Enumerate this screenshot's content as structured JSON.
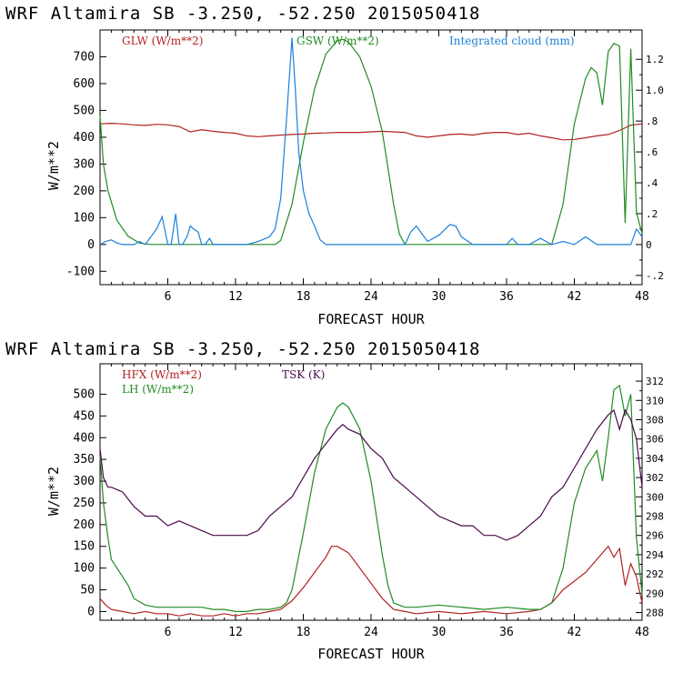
{
  "chart_data": [
    {
      "type": "line",
      "title": "WRF  Altamira  SB  -3.250, -52.250  2015050418",
      "xlabel": "FORECAST HOUR",
      "ylabel": "W/m**2",
      "xlim": [
        0,
        48
      ],
      "ylim": [
        -150,
        800
      ],
      "y2lim": [
        -0.26,
        1.39
      ],
      "xticks": [
        6,
        12,
        18,
        24,
        30,
        36,
        42,
        48
      ],
      "yticks": [
        -100,
        0,
        100,
        200,
        300,
        400,
        500,
        600,
        700
      ],
      "y2ticks": [
        -0.2,
        0,
        0.2,
        0.4,
        0.6,
        0.8,
        1.0,
        1.2
      ],
      "y2ticklabels": [
        "-.2",
        "0",
        ".2",
        ".4",
        ".6",
        ".8",
        "1.0",
        "1.2"
      ],
      "series": [
        {
          "name": "GLW (W/m**2)",
          "color": "#b22222",
          "axis": "left",
          "x": [
            0,
            1,
            2,
            3,
            4,
            5,
            6,
            7,
            8,
            9,
            10,
            11,
            12,
            13,
            14,
            15,
            16,
            17,
            18,
            19,
            20,
            21,
            22,
            23,
            24,
            25,
            26,
            27,
            28,
            29,
            30,
            31,
            32,
            33,
            34,
            35,
            36,
            37,
            38,
            39,
            40,
            41,
            42,
            43,
            44,
            45,
            46,
            47,
            48
          ],
          "y": [
            450,
            452,
            450,
            446,
            444,
            448,
            446,
            440,
            420,
            428,
            422,
            418,
            415,
            405,
            402,
            405,
            408,
            410,
            412,
            415,
            416,
            418,
            418,
            418,
            420,
            422,
            420,
            418,
            405,
            400,
            405,
            410,
            412,
            408,
            415,
            418,
            418,
            410,
            415,
            405,
            398,
            390,
            392,
            398,
            405,
            410,
            425,
            445,
            450
          ]
        },
        {
          "name": "GSW (W/m**2)",
          "color": "#228b22",
          "axis": "left",
          "x": [
            0,
            0.3,
            0.7,
            1.5,
            2.5,
            3.5,
            4.5,
            5.5,
            6.5,
            7.5,
            8.5,
            9.5,
            10.5,
            11.5,
            12.5,
            13.5,
            14.5,
            15.5,
            16,
            17,
            18,
            19,
            20,
            21,
            21.5,
            22,
            23,
            24,
            25,
            26,
            26.5,
            27,
            28,
            40,
            41,
            42,
            43,
            43.5,
            44,
            44.5,
            45,
            45.5,
            46,
            46.5,
            47,
            47.5,
            48
          ],
          "y": [
            480,
            300,
            200,
            90,
            30,
            5,
            0,
            0,
            0,
            0,
            0,
            0,
            0,
            0,
            0,
            0,
            0,
            0,
            15,
            150,
            380,
            580,
            710,
            760,
            765,
            755,
            700,
            590,
            420,
            150,
            40,
            0,
            0,
            0,
            150,
            450,
            620,
            660,
            640,
            520,
            720,
            750,
            740,
            80,
            730,
            120,
            40
          ]
        },
        {
          "name": "Integrated cloud (mm)",
          "color": "#1e7fd8",
          "axis": "right",
          "x": [
            0,
            0.5,
            1,
            1.5,
            2,
            3,
            3.5,
            4,
            4.5,
            5,
            5.5,
            6,
            6.3,
            6.7,
            7,
            7.3,
            7.7,
            8,
            8.3,
            8.7,
            9,
            9.3,
            9.7,
            10,
            11,
            12,
            13,
            14,
            15,
            15.5,
            16,
            16.5,
            17,
            17.3,
            17.6,
            18,
            18.5,
            19,
            19.5,
            20,
            21,
            22,
            23,
            24,
            25,
            26,
            27,
            27.5,
            28,
            29,
            30,
            31,
            31.5,
            32,
            33,
            34,
            35,
            36,
            36.5,
            37,
            38,
            39,
            40,
            41,
            42,
            43,
            44,
            45,
            46,
            47,
            47.5,
            48
          ],
          "y": [
            0,
            0.02,
            0.03,
            0.01,
            0,
            0,
            0.02,
            0,
            0.05,
            0.1,
            0.18,
            0,
            0,
            0.2,
            0,
            0,
            0.05,
            0.12,
            0.1,
            0.08,
            0,
            0,
            0.04,
            0,
            0,
            0,
            0,
            0.02,
            0.05,
            0.1,
            0.3,
            0.8,
            1.34,
            1.0,
            0.6,
            0.35,
            0.2,
            0.12,
            0.03,
            0,
            0,
            0,
            0,
            0,
            0,
            0,
            0,
            0.08,
            0.12,
            0.02,
            0.06,
            0.13,
            0.12,
            0.05,
            0,
            0,
            0,
            0,
            0.04,
            0,
            0,
            0.04,
            0,
            0.02,
            0,
            0.05,
            0,
            0,
            0,
            0,
            0.1,
            0.05
          ]
        }
      ],
      "legend": [
        {
          "label": "GLW (W/m**2)",
          "color": "#b22222"
        },
        {
          "label": "GSW (W/m**2)",
          "color": "#228b22"
        },
        {
          "label": "Integrated cloud (mm)",
          "color": "#1e7fd8"
        }
      ]
    },
    {
      "type": "line",
      "title": "WRF  Altamira  SB  -3.250, -52.250  2015050418",
      "xlabel": "FORECAST HOUR",
      "ylabel": "W/m**2",
      "xlim": [
        0,
        48
      ],
      "ylim": [
        -20,
        570
      ],
      "y2lim": [
        287.2,
        313.8
      ],
      "xticks": [
        6,
        12,
        18,
        24,
        30,
        36,
        42,
        48
      ],
      "yticks": [
        0,
        50,
        100,
        150,
        200,
        250,
        300,
        350,
        400,
        450,
        500
      ],
      "y2ticks": [
        288,
        290,
        292,
        294,
        296,
        298,
        300,
        302,
        304,
        306,
        308,
        310,
        312
      ],
      "y2ticklabels": [
        "288",
        "290",
        "292",
        "294",
        "296",
        "298",
        "300",
        "302",
        "304",
        "306",
        "308",
        "310",
        "312"
      ],
      "series": [
        {
          "name": "HFX (W/m**2)",
          "color": "#b22222",
          "axis": "left",
          "x": [
            0,
            0.5,
            1,
            2,
            3,
            4,
            5,
            6,
            7,
            8,
            9,
            10,
            11,
            12,
            13,
            14,
            15,
            16,
            17,
            18,
            19,
            20,
            20.5,
            21,
            22,
            23,
            24,
            25,
            26,
            27,
            28,
            30,
            32,
            34,
            36,
            38,
            39,
            40,
            41,
            42,
            43,
            44,
            45,
            45.5,
            46,
            46.5,
            47,
            47.5,
            48
          ],
          "y": [
            30,
            15,
            5,
            0,
            -5,
            0,
            -5,
            -5,
            -10,
            -5,
            -10,
            -10,
            -5,
            -10,
            -5,
            -5,
            0,
            5,
            25,
            55,
            90,
            125,
            150,
            150,
            135,
            100,
            65,
            30,
            5,
            0,
            -5,
            0,
            -5,
            0,
            -5,
            0,
            5,
            20,
            50,
            70,
            90,
            120,
            150,
            125,
            145,
            60,
            110,
            80,
            20
          ]
        },
        {
          "name": "LH (W/m**2)",
          "color": "#228b22",
          "axis": "left",
          "x": [
            0,
            0.3,
            0.7,
            1,
            1.5,
            2,
            2.5,
            3,
            4,
            5,
            6,
            7,
            8,
            9,
            10,
            11,
            12,
            13,
            14,
            15,
            16,
            16.5,
            17,
            18,
            19,
            20,
            21,
            21.5,
            22,
            23,
            24,
            25,
            25.5,
            26,
            27,
            28,
            30,
            32,
            34,
            36,
            38,
            39,
            40,
            41,
            42,
            43,
            43.5,
            44,
            44.5,
            45,
            45.5,
            46,
            46.5,
            47,
            47.5,
            48
          ],
          "y": [
            360,
            250,
            170,
            120,
            100,
            80,
            60,
            30,
            15,
            10,
            10,
            10,
            10,
            10,
            5,
            5,
            0,
            0,
            5,
            5,
            10,
            20,
            50,
            180,
            320,
            420,
            470,
            480,
            470,
            420,
            300,
            130,
            60,
            20,
            10,
            10,
            15,
            10,
            5,
            10,
            5,
            5,
            20,
            100,
            250,
            330,
            350,
            370,
            300,
            400,
            510,
            520,
            450,
            500,
            170,
            40
          ]
        },
        {
          "name": "TSK (K)",
          "color": "#4b0a4b",
          "axis": "right",
          "x": [
            0,
            0.3,
            0.7,
            1,
            2,
            3,
            4,
            5,
            6,
            7,
            8,
            9,
            10,
            11,
            12,
            13,
            14,
            15,
            16,
            17,
            18,
            19,
            20,
            21,
            21.5,
            22,
            23,
            24,
            25,
            26,
            27,
            28,
            29,
            30,
            31,
            32,
            33,
            34,
            35,
            36,
            37,
            38,
            39,
            40,
            41,
            42,
            43,
            44,
            45,
            45.5,
            46,
            46.5,
            47,
            47.5,
            48
          ],
          "y": [
            305,
            302,
            301,
            301,
            300.5,
            299,
            298,
            298,
            297,
            297.5,
            297,
            296.5,
            296,
            296,
            296,
            296,
            296.5,
            298,
            299,
            300,
            302,
            304,
            305.5,
            307,
            307.5,
            307,
            306.5,
            305,
            304,
            302,
            301,
            300,
            299,
            298,
            297.5,
            297,
            297,
            296,
            296,
            295.5,
            296,
            297,
            298,
            300,
            301,
            303,
            305,
            307,
            308.5,
            309,
            307,
            309,
            308,
            306,
            301
          ]
        }
      ],
      "legend": [
        {
          "label": "HFX (W/m**2)",
          "color": "#b22222"
        },
        {
          "label": "LH  (W/m**2)",
          "color": "#228b22"
        },
        {
          "label": "TSK (K)",
          "color": "#4b0a4b"
        }
      ]
    }
  ]
}
